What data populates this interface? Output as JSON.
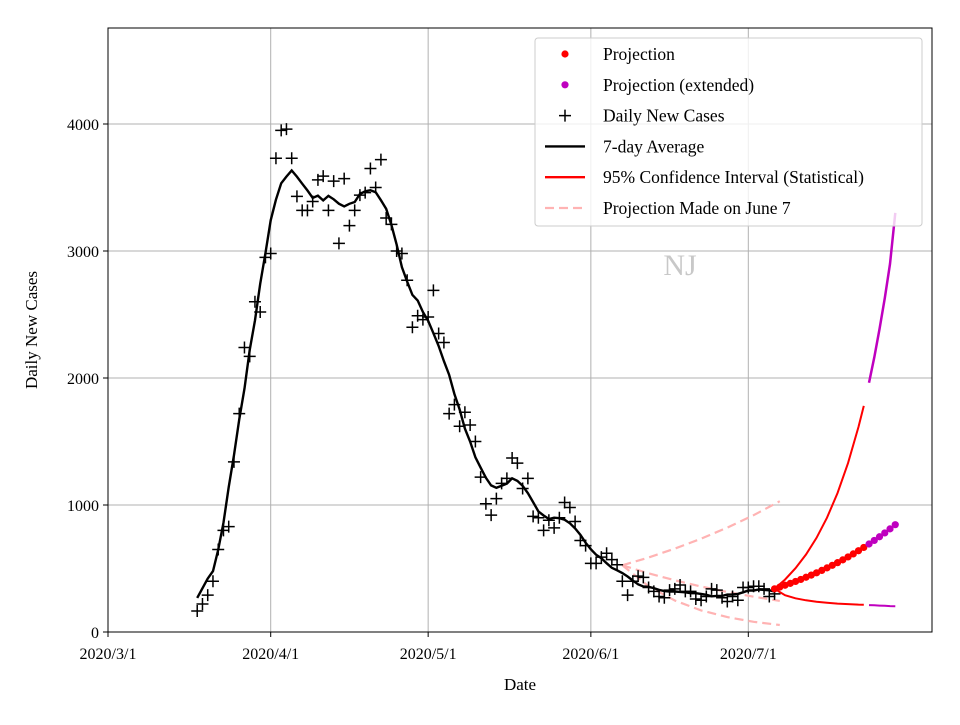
{
  "chart_data": {
    "type": "line",
    "watermark": "NJ",
    "xlabel": "Date",
    "ylabel": "Daily New Cases",
    "xlim": [
      "2020-03-01",
      "2020-08-05"
    ],
    "ylim": [
      0,
      4756
    ],
    "grid": true,
    "legend_placement": "top-right",
    "x_ticks": [
      {
        "date": "2020-03-01",
        "label": "2020/3/1"
      },
      {
        "date": "2020-04-01",
        "label": "2020/4/1"
      },
      {
        "date": "2020-05-01",
        "label": "2020/5/1"
      },
      {
        "date": "2020-06-01",
        "label": "2020/6/1"
      },
      {
        "date": "2020-07-01",
        "label": "2020/7/1"
      }
    ],
    "y_ticks": [
      {
        "value": 0,
        "label": "0"
      },
      {
        "value": 1000,
        "label": "1000"
      },
      {
        "value": 2000,
        "label": "2000"
      },
      {
        "value": 3000,
        "label": "3000"
      },
      {
        "value": 4000,
        "label": "4000"
      }
    ],
    "legend": [
      {
        "key": "projection",
        "label": "Projection",
        "color": "#ff0000",
        "style": "dot"
      },
      {
        "key": "projection_ext",
        "label": "Projection (extended)",
        "color": "#bf00bf",
        "style": "dot"
      },
      {
        "key": "daily",
        "label": "Daily New Cases",
        "color": "#000000",
        "style": "plus"
      },
      {
        "key": "avg",
        "label": "7-day Average",
        "color": "#000000",
        "style": "line"
      },
      {
        "key": "ci",
        "label": "95% Confidence Interval (Statistical)",
        "color": "#ff0000",
        "style": "line"
      },
      {
        "key": "june7",
        "label": "Projection Made on June 7",
        "color": "#ffb3b3",
        "style": "dash"
      }
    ],
    "daily_new_cases": {
      "start_date": "2020-03-18",
      "values": [
        165,
        220,
        290,
        400,
        650,
        800,
        830,
        1340,
        1720,
        2240,
        2170,
        2600,
        2520,
        2950,
        2980,
        3730,
        3950,
        3960,
        3730,
        3430,
        3320,
        3320,
        3390,
        3560,
        3590,
        3320,
        3550,
        3060,
        3570,
        3200,
        3320,
        3440,
        3460,
        3650,
        3500,
        3720,
        3260,
        3210,
        3000,
        2980,
        2770,
        2400,
        2490,
        2460,
        2480,
        2690,
        2350,
        2280,
        1720,
        1790,
        1620,
        1730,
        1630,
        1500,
        1220,
        1010,
        920,
        1050,
        1170,
        1210,
        1370,
        1330,
        1130,
        1210,
        910,
        900,
        800,
        880,
        820,
        900,
        1020,
        980,
        870,
        720,
        680,
        540,
        540,
        590,
        620,
        570,
        530,
        400,
        290,
        400,
        440,
        430,
        350,
        320,
        280,
        270,
        330,
        340,
        370,
        320,
        320,
        260,
        250,
        280,
        340,
        330,
        270,
        240,
        280,
        250,
        350,
        350,
        360,
        360,
        340,
        280,
        300
      ]
    },
    "average_window_days": 7,
    "projection": {
      "start_date": "2020-07-06",
      "values": [
        340,
        354,
        368,
        383,
        398,
        414,
        431,
        448,
        466,
        485,
        505,
        525,
        546,
        568,
        591,
        615,
        640,
        666
      ],
      "extended_values": [
        693,
        721,
        750,
        780,
        812,
        845
      ]
    },
    "confidence_interval": {
      "start_date": "2020-07-06",
      "days": [
        0,
        2,
        4,
        6,
        8,
        10,
        12,
        14,
        16,
        17
      ],
      "upper": [
        340,
        413,
        502,
        610,
        741,
        900,
        1094,
        1329,
        1615,
        1780
      ],
      "lower": [
        340,
        290,
        265,
        250,
        238,
        230,
        224,
        220,
        216,
        215
      ],
      "extended_days": [
        18,
        19,
        20,
        21,
        22,
        23
      ],
      "extended_upper": [
        1962,
        2163,
        2385,
        2629,
        2898,
        3300
      ],
      "extended_lower": [
        212,
        210,
        208,
        206,
        204,
        203
      ]
    },
    "june7_projection": {
      "start_date": "2020-06-07",
      "days": [
        0,
        5,
        10,
        15,
        20,
        25,
        30
      ],
      "middle": [
        525,
        462,
        407,
        358,
        315,
        278,
        245
      ],
      "upper": [
        525,
        587,
        657,
        735,
        822,
        920,
        1030
      ],
      "lower": [
        525,
        360,
        248,
        170,
        117,
        80,
        55
      ]
    }
  }
}
